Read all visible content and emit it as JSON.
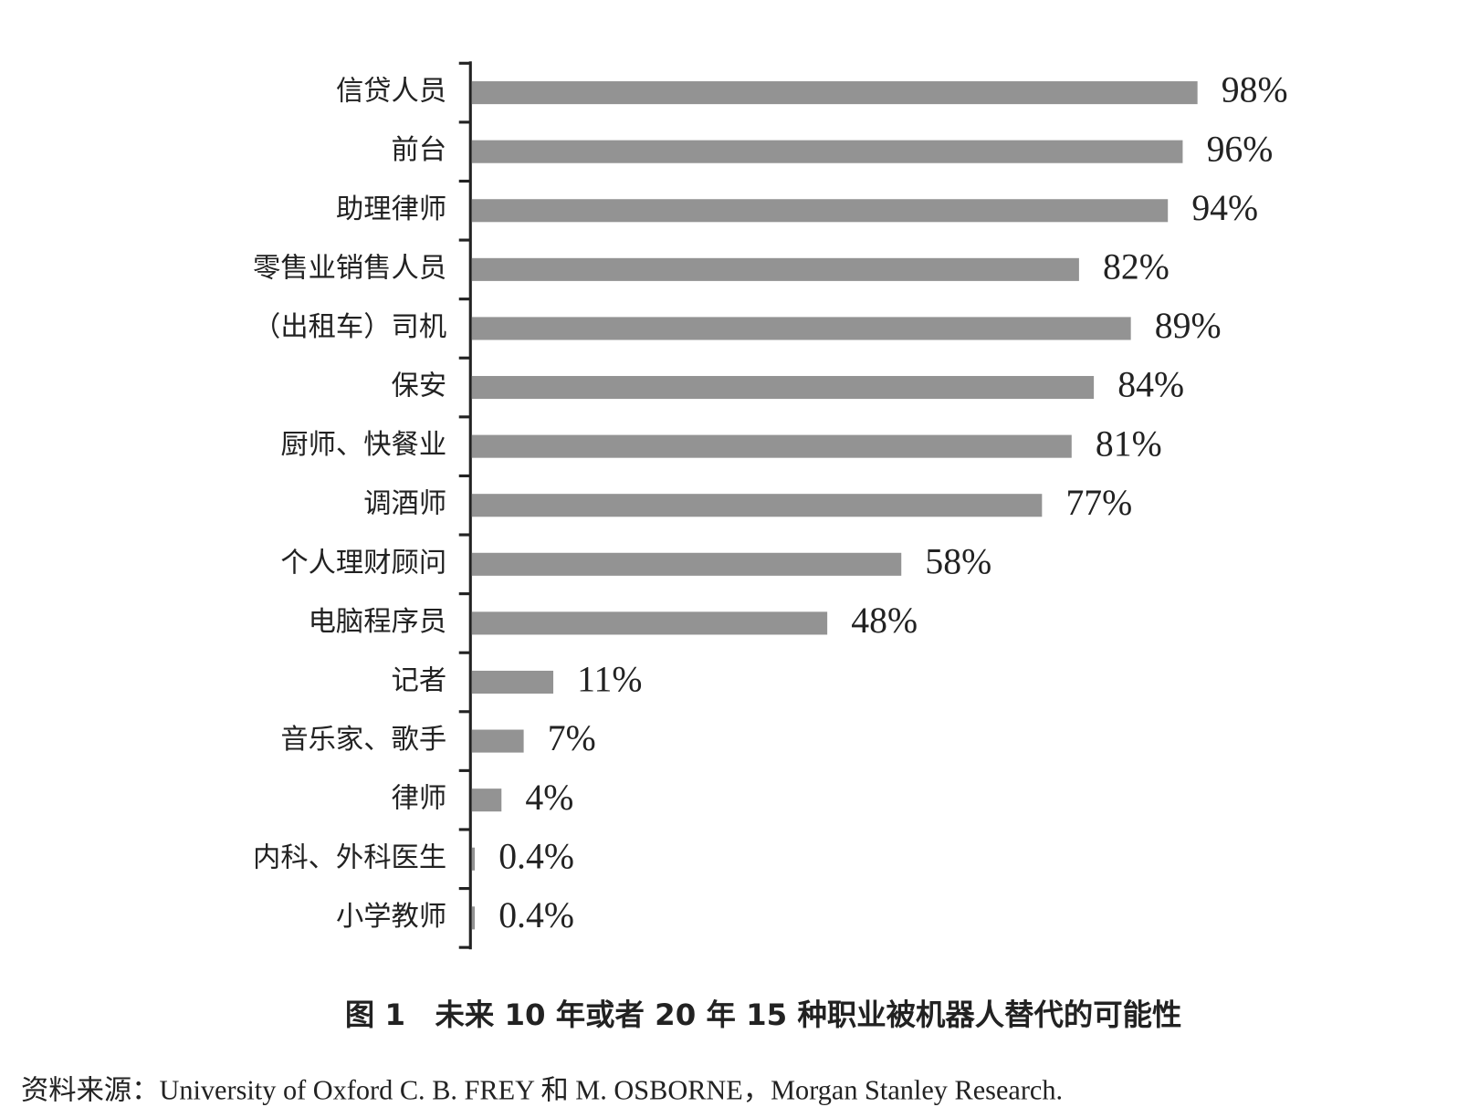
{
  "chart_data": {
    "type": "bar",
    "orientation": "horizontal",
    "title": "图 1　未来 10 年或者 20 年 15 种职业被机器人替代的可能性",
    "source": "资料来源：University of Oxford C. B. FREY 和 M. OSBORNE，Morgan Stanley Research.",
    "categories": [
      "信贷人员",
      "前台",
      "助理律师",
      "零售业销售人员",
      "（出租车）司机",
      "保安",
      "厨师、快餐业",
      "调酒师",
      "个人理财顾问",
      "电脑程序员",
      "记者",
      "音乐家、歌手",
      "律师",
      "内科、外科医生",
      "小学教师"
    ],
    "values": [
      98,
      96,
      94,
      82,
      89,
      84,
      81,
      77,
      58,
      48,
      11,
      7,
      4,
      0.4,
      0.4
    ],
    "value_labels": [
      "98%",
      "96%",
      "94%",
      "82%",
      "89%",
      "84%",
      "81%",
      "77%",
      "58%",
      "48%",
      "11%",
      "7%",
      "4%",
      "0.4%",
      "0.4%"
    ],
    "color": "#939393"
  }
}
